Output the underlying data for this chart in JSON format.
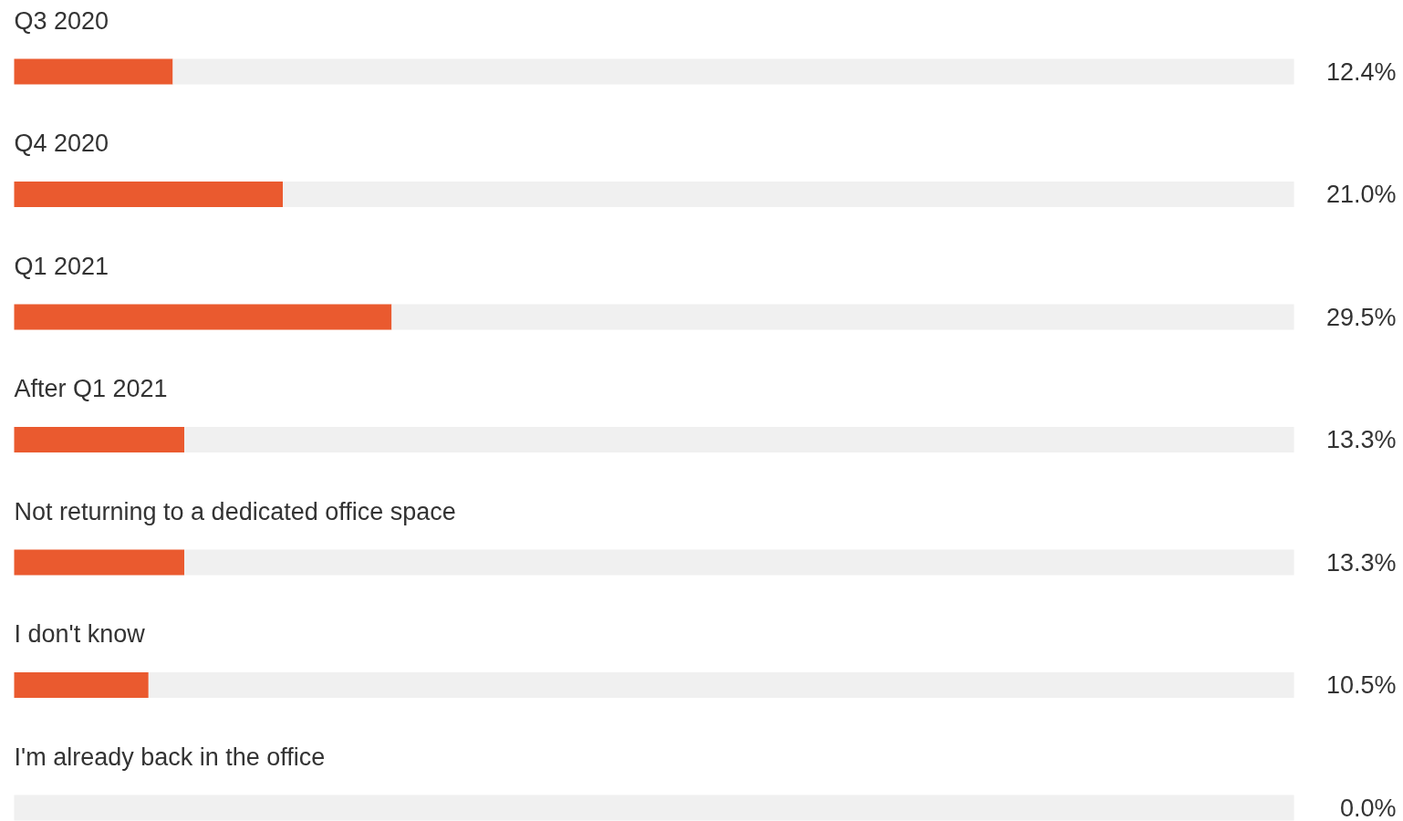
{
  "chart_data": {
    "type": "bar",
    "orientation": "horizontal",
    "stacked": true,
    "categories": [
      "Q3 2020",
      "Q4 2020",
      "Q1 2021",
      "After Q1 2021",
      "Not returning to a dedicated office space",
      "I don't know",
      "I'm already back in the office"
    ],
    "series": [
      {
        "color": "#ea5a2f",
        "values": [
          12.4,
          21.0,
          29.5,
          13.3,
          13.3,
          10.5,
          0.0
        ],
        "value_labels": [
          "12.4%",
          "21.0%",
          "29.5%",
          "13.3%",
          "13.3%",
          "10.5%",
          "0.0%"
        ]
      },
      {
        "color": "#f0f0f0",
        "values": [
          87.6,
          79.0,
          70.5,
          86.7,
          86.7,
          89.5,
          100.0
        ]
      }
    ],
    "xlim": [
      0,
      100
    ],
    "grid": false
  }
}
